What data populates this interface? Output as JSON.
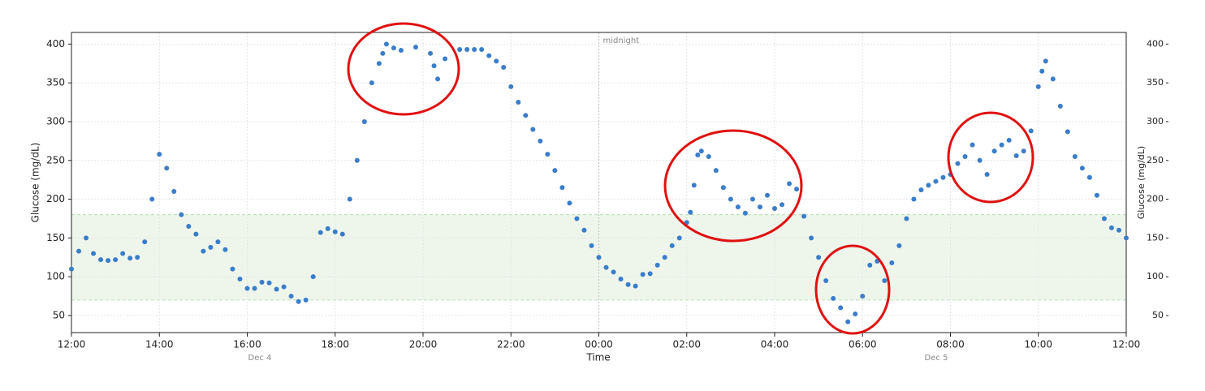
{
  "chart_data": {
    "type": "scatter",
    "xlabel": "Time",
    "ylabel": "Glucose (mg/dL)",
    "y2label": "Glucose (mg/dL)",
    "annotation": "midnight",
    "date_labels": [
      "Dec 4",
      "Dec 5"
    ],
    "color": "#3a7dc9",
    "target_range": [
      70,
      180
    ],
    "target_color": "#eef6ec",
    "grid": true,
    "xlim": [
      0,
      1440
    ],
    "xticks": [
      {
        "value": 0,
        "label": "12:00"
      },
      {
        "value": 120,
        "label": "14:00"
      },
      {
        "value": 240,
        "label": "16:00"
      },
      {
        "value": 360,
        "label": "18:00"
      },
      {
        "value": 480,
        "label": "20:00"
      },
      {
        "value": 600,
        "label": "22:00"
      },
      {
        "value": 720,
        "label": "00:00"
      },
      {
        "value": 840,
        "label": "02:00"
      },
      {
        "value": 960,
        "label": "04:00"
      },
      {
        "value": 1080,
        "label": "06:00"
      },
      {
        "value": 1200,
        "label": "08:00"
      },
      {
        "value": 1320,
        "label": "10:00"
      },
      {
        "value": 1440,
        "label": "12:00"
      }
    ],
    "ylim": [
      28,
      415
    ],
    "yticks": [
      50,
      100,
      150,
      200,
      250,
      300,
      350,
      400
    ],
    "y2lim": [
      28,
      415
    ],
    "y2ticks": [
      50,
      100,
      150,
      200,
      250,
      300,
      350,
      400
    ],
    "x": [
      0,
      10,
      20,
      30,
      40,
      50,
      60,
      70,
      80,
      90,
      100,
      110,
      120,
      130,
      140,
      150,
      160,
      170,
      180,
      190,
      200,
      210,
      220,
      230,
      240,
      250,
      260,
      270,
      280,
      290,
      300,
      310,
      320,
      330,
      340,
      350,
      360,
      370,
      380,
      390,
      400,
      410,
      420,
      425,
      430,
      440,
      450,
      470,
      490,
      495,
      500,
      510,
      530,
      540,
      550,
      560,
      570,
      580,
      590,
      600,
      610,
      620,
      630,
      640,
      650,
      660,
      670,
      680,
      690,
      700,
      710,
      720,
      730,
      740,
      750,
      760,
      770,
      780,
      790,
      800,
      810,
      820,
      830,
      840,
      845,
      850,
      855,
      860,
      870,
      880,
      890,
      900,
      910,
      920,
      930,
      940,
      950,
      960,
      970,
      980,
      990,
      1000,
      1010,
      1020,
      1030,
      1040,
      1050,
      1060,
      1070,
      1080,
      1090,
      1100,
      1110,
      1120,
      1130,
      1140,
      1150,
      1160,
      1170,
      1180,
      1190,
      1200,
      1210,
      1220,
      1230,
      1240,
      1250,
      1260,
      1270,
      1280,
      1290,
      1300,
      1310,
      1320,
      1325,
      1330,
      1340,
      1350,
      1360,
      1370,
      1380,
      1390,
      1400,
      1410,
      1420,
      1430,
      1440
    ],
    "values": [
      110,
      133,
      150,
      130,
      122,
      121,
      122,
      130,
      124,
      125,
      145,
      200,
      258,
      240,
      210,
      180,
      165,
      155,
      133,
      138,
      145,
      135,
      110,
      97,
      85,
      85,
      93,
      92,
      84,
      87,
      75,
      68,
      70,
      100,
      157,
      162,
      158,
      155,
      200,
      250,
      300,
      350,
      375,
      388,
      400,
      395,
      392,
      396,
      388,
      372,
      355,
      381,
      393,
      393,
      393,
      393,
      385,
      378,
      370,
      345,
      325,
      308,
      290,
      275,
      258,
      237,
      215,
      195,
      175,
      160,
      140,
      125,
      112,
      106,
      97,
      90,
      88,
      103,
      104,
      115,
      125,
      140,
      150,
      170,
      183,
      218,
      257,
      262,
      255,
      237,
      215,
      200,
      190,
      182,
      200,
      190,
      205,
      188,
      193,
      220,
      213,
      178,
      150,
      125,
      95,
      72,
      60,
      42,
      52,
      75,
      115,
      120,
      95,
      118,
      140,
      175,
      200,
      212,
      218,
      223,
      228,
      232,
      246,
      255,
      270,
      250,
      232,
      262,
      270,
      276,
      256,
      262,
      288,
      345,
      365,
      378,
      355,
      320,
      287,
      255,
      240,
      228,
      205,
      175,
      163,
      160,
      150
    ]
  }
}
